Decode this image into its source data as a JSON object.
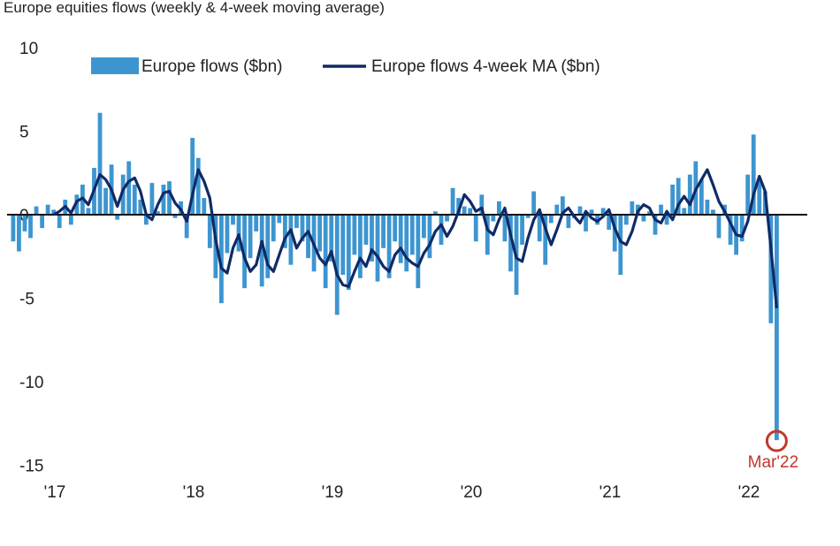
{
  "chart_data": {
    "type": "bar+line",
    "title": "Europe equities flows (weekly & 4-week moving average)",
    "xlabel": "",
    "ylabel": "",
    "ylim": [
      -15,
      10
    ],
    "yticks": [
      10,
      5,
      0,
      -5,
      -10,
      -15
    ],
    "ytick_labels": [
      "10",
      "5",
      "0",
      "-5",
      "-10",
      "-15"
    ],
    "xticks": [
      2017,
      2018,
      2019,
      2020,
      2021,
      2022
    ],
    "xtick_labels": [
      "'17",
      "'18",
      "'19",
      "'20",
      "'21",
      "'22"
    ],
    "x_start": 2016.7,
    "x_step_years": 0.041667,
    "legend_position": "top",
    "colors": {
      "bars": "#3d95d0",
      "line": "#0f2a66",
      "zero": "#111111",
      "annotation": "#c0392b"
    },
    "series": [
      {
        "name": "Europe flows ($bn)",
        "type": "bar",
        "values": [
          -1.6,
          -2.2,
          -1.0,
          -1.4,
          0.5,
          -0.8,
          0.6,
          0.3,
          -0.8,
          0.9,
          -0.6,
          1.2,
          1.8,
          0.4,
          2.8,
          6.1,
          1.6,
          3.0,
          -0.3,
          2.4,
          3.2,
          1.8,
          0.9,
          -0.6,
          1.9,
          0.2,
          1.8,
          2.0,
          -0.2,
          0.8,
          -1.4,
          4.6,
          3.4,
          1.0,
          -2.0,
          -3.8,
          -5.3,
          -2.3,
          -0.6,
          -2.2,
          -4.4,
          -2.6,
          -1.0,
          -4.3,
          -3.8,
          -1.6,
          -0.5,
          -2.0,
          -3.0,
          -0.8,
          -1.6,
          -2.6,
          -3.4,
          -2.2,
          -4.4,
          -2.8,
          -6.0,
          -3.6,
          -4.5,
          -2.4,
          -3.8,
          -1.8,
          -2.8,
          -4.0,
          -2.0,
          -3.8,
          -1.6,
          -2.9,
          -3.4,
          -2.4,
          -4.4,
          -1.4,
          -2.6,
          0.2,
          -1.8,
          -0.4,
          1.6,
          1.0,
          0.5,
          0.4,
          -1.6,
          1.2,
          -2.4,
          -0.4,
          0.8,
          -1.6,
          -3.4,
          -4.8,
          -1.8,
          -0.2,
          1.4,
          -1.6,
          -3.0,
          -0.5,
          0.6,
          1.1,
          -0.8,
          -0.2,
          0.5,
          -1.0,
          0.3,
          -0.6,
          0.4,
          -0.9,
          -2.2,
          -3.6,
          -0.6,
          0.8,
          0.6,
          -0.4,
          0.2,
          -1.2,
          0.6,
          -0.6,
          1.8,
          2.2,
          0.4,
          2.4,
          3.2,
          2.1,
          0.9,
          0.3,
          -1.4,
          0.6,
          -1.8,
          -2.4,
          -1.6,
          2.4,
          4.8,
          2.0,
          1.4,
          -6.5,
          -13.5
        ]
      },
      {
        "name": "Europe flows 4-week MA ($bn)",
        "type": "line",
        "values": [
          null,
          null,
          null,
          null,
          null,
          null,
          null,
          0,
          0.2,
          0.5,
          0.1,
          0.8,
          1.0,
          0.6,
          1.5,
          2.4,
          2.1,
          1.5,
          0.5,
          1.5,
          2.0,
          2.2,
          1.4,
          0,
          -0.3,
          0.6,
          1.3,
          1.4,
          0.7,
          0.3,
          -0.4,
          1.2,
          2.7,
          2.0,
          1.0,
          -1.5,
          -3.2,
          -3.5,
          -2.0,
          -1.2,
          -2.6,
          -3.4,
          -3.0,
          -1.6,
          -3.0,
          -3.4,
          -2.4,
          -1.4,
          -0.9,
          -2.0,
          -1.4,
          -1.0,
          -1.8,
          -2.6,
          -3.0,
          -2.2,
          -3.6,
          -4.2,
          -4.3,
          -3.4,
          -2.6,
          -3.1,
          -2.1,
          -2.5,
          -3.1,
          -3.4,
          -2.4,
          -2.0,
          -2.6,
          -2.9,
          -3.1,
          -2.3,
          -1.8,
          -1.0,
          -0.6,
          -1.3,
          -0.7,
          0.2,
          1.2,
          0.8,
          0.2,
          0.4,
          -0.9,
          -1.2,
          -0.3,
          0.4,
          -1.2,
          -2.6,
          -2.8,
          -1.4,
          -0.3,
          0.3,
          -0.8,
          -1.8,
          -0.9,
          0.1,
          0.4,
          -0.1,
          -0.5,
          0.2,
          -0.2,
          -0.4,
          -0.1,
          0.3,
          -0.8,
          -1.6,
          -1.8,
          -1.0,
          0.2,
          0.6,
          0.4,
          -0.3,
          -0.5,
          0.2,
          -0.3,
          0.6,
          1.1,
          0.6,
          1.5,
          2.1,
          2.7,
          1.8,
          0.8,
          0.2,
          -0.5,
          -1.2,
          -1.3,
          -0.4,
          1.2,
          2.3,
          1.4,
          -2.0,
          -5.6
        ]
      }
    ],
    "annotations": [
      {
        "text": "Mar'22",
        "x": 2022.2,
        "y": -13.5
      }
    ]
  }
}
